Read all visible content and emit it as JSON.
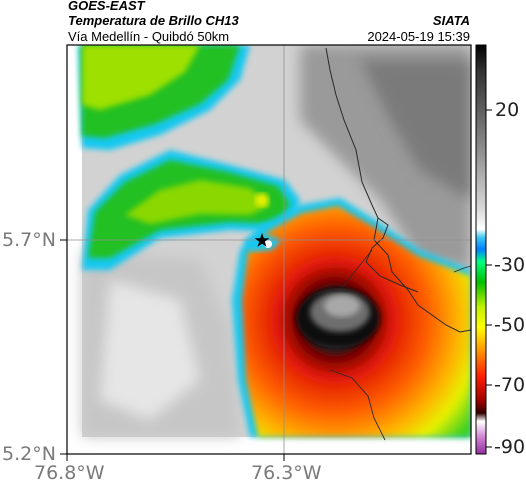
{
  "header": {
    "satellite": "GOES-EAST",
    "product": "Temperatura de Brillo CH13",
    "route": "Vía Medellín - Quibdó 50km",
    "source": "SIATA",
    "datetime": "2024-05-19 15:39"
  },
  "axes": {
    "y_ticks": [
      "5.7°N",
      "5.2°N"
    ],
    "x_ticks": [
      "76.8°W",
      "76.3°W"
    ]
  },
  "colorbar": {
    "labels": [
      "20",
      "-30",
      "-50",
      "-70",
      "-90"
    ]
  },
  "colors": {
    "cold_core": "#2a2a2a",
    "red": "#e02010",
    "orange": "#ff9000",
    "yellow": "#f4f000",
    "green": "#20c020",
    "cyan": "#18c8f0",
    "warm_gray": "#d0d0d0"
  },
  "map": {
    "marker": "star",
    "crosshair": true
  }
}
